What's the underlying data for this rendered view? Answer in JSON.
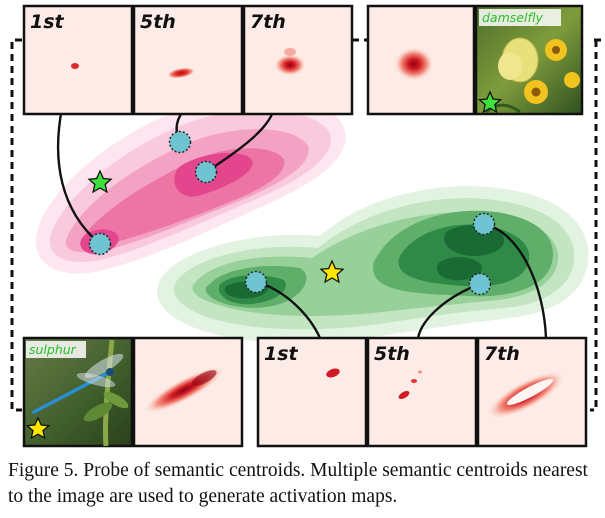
{
  "figure": {
    "top_panel_labels": [
      "1st",
      "5th",
      "7th"
    ],
    "bottom_panel_labels": [
      "1st",
      "5th",
      "7th"
    ],
    "top_image_tag": "damselfly",
    "bottom_image_tag": "sulphur"
  },
  "caption": {
    "text": "Figure 5. Probe of semantic centroids. Multiple semantic centroids nearest to the image are used to generate activation maps."
  },
  "colors": {
    "pink_cluster": "#e8328a",
    "green_cluster": "#1f7a3a",
    "centroid": "#6fc4d1",
    "heat": "#d62020",
    "panel_bg": "#fcebe6",
    "star_green": "#3ee03e",
    "star_yellow": "#ffe500"
  }
}
